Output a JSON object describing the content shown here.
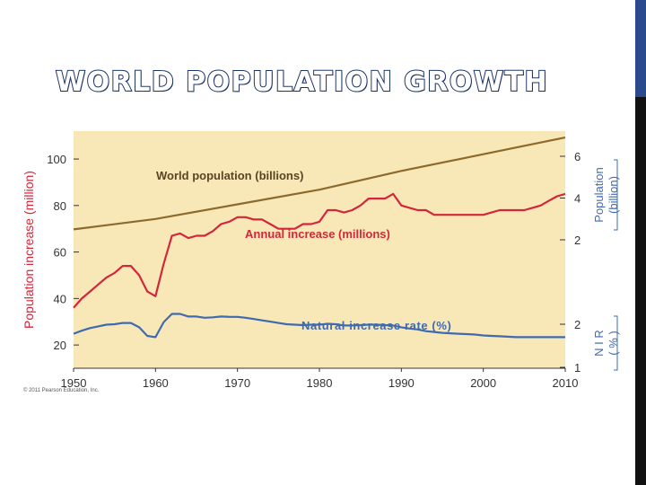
{
  "slide": {
    "title": "WORLD POPULATION GROWTH",
    "copyright": "© 2011 Pearson Education, Inc.",
    "colors": {
      "title_outline": "#1d3466",
      "accent_bar": "#2a4a8c",
      "plot_background": "#f8e8b8"
    }
  },
  "chart_data": {
    "type": "line",
    "title": "",
    "xlabel": "",
    "x_ticks": [
      "1950",
      "1960",
      "1970",
      "1980",
      "1990",
      "2000",
      "2010"
    ],
    "xlim": [
      1950,
      2010
    ],
    "grid": false,
    "left_axis": {
      "label": "Population increase (million)",
      "ticks": [
        "20",
        "40",
        "60",
        "80",
        "100"
      ],
      "ylim": [
        10,
        112
      ],
      "color": "#d4263a"
    },
    "right_axes": [
      {
        "label_line1": "Population",
        "label_line2": "(billion)",
        "ticks": [
          "2",
          "4",
          "6"
        ],
        "color": "#3f6ab0"
      },
      {
        "label_line1": "N I R",
        "label_line2": "( % )",
        "ticks": [
          "1",
          "2"
        ],
        "color": "#3f6ab0"
      }
    ],
    "series": [
      {
        "name": "World population (billions)",
        "color": "#8c6a2e",
        "axis": "population",
        "x": [
          1950,
          1960,
          1970,
          1980,
          1990,
          2000,
          2010
        ],
        "y": [
          2.5,
          3.0,
          3.7,
          4.4,
          5.3,
          6.1,
          6.9
        ]
      },
      {
        "name": "Annual increase (millions)",
        "color": "#d4263a",
        "axis": "increase",
        "x": [
          1950,
          1951,
          1952,
          1953,
          1954,
          1955,
          1956,
          1957,
          1958,
          1959,
          1960,
          1961,
          1962,
          1963,
          1964,
          1965,
          1966,
          1967,
          1968,
          1969,
          1970,
          1971,
          1972,
          1973,
          1974,
          1975,
          1976,
          1977,
          1978,
          1979,
          1980,
          1981,
          1982,
          1983,
          1984,
          1985,
          1986,
          1987,
          1988,
          1989,
          1990,
          1991,
          1992,
          1993,
          1994,
          1995,
          1996,
          1997,
          1998,
          1999,
          2000,
          2001,
          2002,
          2003,
          2004,
          2005,
          2006,
          2007,
          2008,
          2009,
          2010
        ],
        "y": [
          36,
          40,
          43,
          46,
          49,
          51,
          54,
          54,
          50,
          43,
          41,
          55,
          67,
          68,
          66,
          67,
          67,
          69,
          72,
          73,
          75,
          75,
          74,
          74,
          72,
          70,
          70,
          70,
          72,
          72,
          73,
          78,
          78,
          77,
          78,
          80,
          83,
          83,
          83,
          85,
          80,
          79,
          78,
          78,
          76,
          76,
          76,
          76,
          76,
          76,
          76,
          77,
          78,
          78,
          78,
          78,
          79,
          80,
          82,
          84,
          85
        ]
      },
      {
        "name": "Natural increase rate (%)",
        "color": "#3f6ab0",
        "axis": "nir",
        "x": [
          1950,
          1951,
          1952,
          1953,
          1954,
          1955,
          1956,
          1957,
          1958,
          1959,
          1960,
          1961,
          1962,
          1963,
          1964,
          1965,
          1966,
          1967,
          1968,
          1969,
          1970,
          1971,
          1972,
          1973,
          1974,
          1975,
          1976,
          1977,
          1978,
          1979,
          1980,
          1981,
          1982,
          1983,
          1984,
          1985,
          1986,
          1987,
          1988,
          1989,
          1990,
          1991,
          1992,
          1993,
          1994,
          1995,
          1996,
          1997,
          1998,
          1999,
          2000,
          2001,
          2002,
          2003,
          2004,
          2005,
          2006,
          2007,
          2008,
          2009,
          2010
        ],
        "y": [
          1.78,
          1.85,
          1.91,
          1.95,
          1.99,
          2.0,
          2.03,
          2.03,
          1.93,
          1.73,
          1.7,
          2.05,
          2.24,
          2.24,
          2.18,
          2.18,
          2.15,
          2.16,
          2.18,
          2.17,
          2.17,
          2.15,
          2.12,
          2.09,
          2.06,
          2.03,
          2.0,
          1.99,
          1.98,
          1.99,
          1.99,
          2.01,
          2.0,
          1.97,
          1.97,
          1.98,
          1.99,
          1.99,
          1.98,
          1.97,
          1.93,
          1.9,
          1.88,
          1.84,
          1.82,
          1.8,
          1.79,
          1.78,
          1.77,
          1.76,
          1.74,
          1.73,
          1.72,
          1.71,
          1.7,
          1.7,
          1.7,
          1.7,
          1.7,
          1.7,
          1.7
        ]
      }
    ]
  }
}
